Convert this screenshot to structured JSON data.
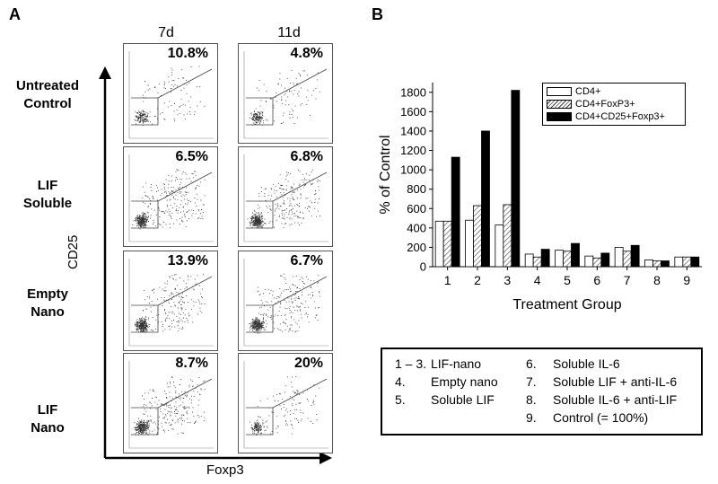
{
  "panel_a": {
    "label": "A",
    "columns": [
      "7d",
      "11d"
    ],
    "rows": [
      {
        "label_lines": [
          "Untreated",
          "Control"
        ],
        "values": [
          "10.8%",
          "4.8%"
        ]
      },
      {
        "label_lines": [
          "LIF",
          "Soluble"
        ],
        "values": [
          "6.5%",
          "6.8%"
        ]
      },
      {
        "label_lines": [
          "Empty",
          "Nano"
        ],
        "values": [
          "13.9%",
          "6.7%"
        ]
      },
      {
        "label_lines": [
          "LIF",
          "Nano"
        ],
        "values": [
          "8.7%",
          "20%"
        ]
      }
    ],
    "y_axis_label": "CD25",
    "x_axis_label": "Foxp3"
  },
  "panel_b": {
    "label": "B",
    "groups_list": [
      {
        "num": "1 – 3.",
        "text": "LIF-nano"
      },
      {
        "num": "4.",
        "text": "Empty nano"
      },
      {
        "num": "5.",
        "text": "Soluble LIF"
      },
      {
        "num": "6.",
        "text": "Soluble IL-6"
      },
      {
        "num": "7.",
        "text": "Soluble LIF + anti-IL-6"
      },
      {
        "num": "8.",
        "text": "Soluble IL-6 + anti-LIF"
      },
      {
        "num": "9.",
        "text": "Control (= 100%)"
      }
    ]
  },
  "chart_data": {
    "type": "bar",
    "categories": [
      "1",
      "2",
      "3",
      "4",
      "5",
      "6",
      "7",
      "8",
      "9"
    ],
    "series": [
      {
        "name": "CD4+",
        "fill": "#ffffff",
        "values": [
          470,
          480,
          430,
          130,
          170,
          110,
          200,
          70,
          100
        ]
      },
      {
        "name": "CD4+FoxP3+",
        "fill": "hatch",
        "values": [
          470,
          630,
          640,
          100,
          160,
          90,
          160,
          60,
          100
        ]
      },
      {
        "name": "CD4+CD25+Foxp3+",
        "fill": "#000000",
        "values": [
          1130,
          1400,
          1820,
          180,
          240,
          140,
          220,
          60,
          100
        ]
      }
    ],
    "xlabel": "Treatment Group",
    "ylabel": "% of Control",
    "ylim": [
      0,
      1900
    ],
    "yticks": [
      0,
      200,
      400,
      600,
      800,
      1000,
      1200,
      1400,
      1600,
      1800
    ],
    "legend_position": "top-right",
    "grid": false
  }
}
